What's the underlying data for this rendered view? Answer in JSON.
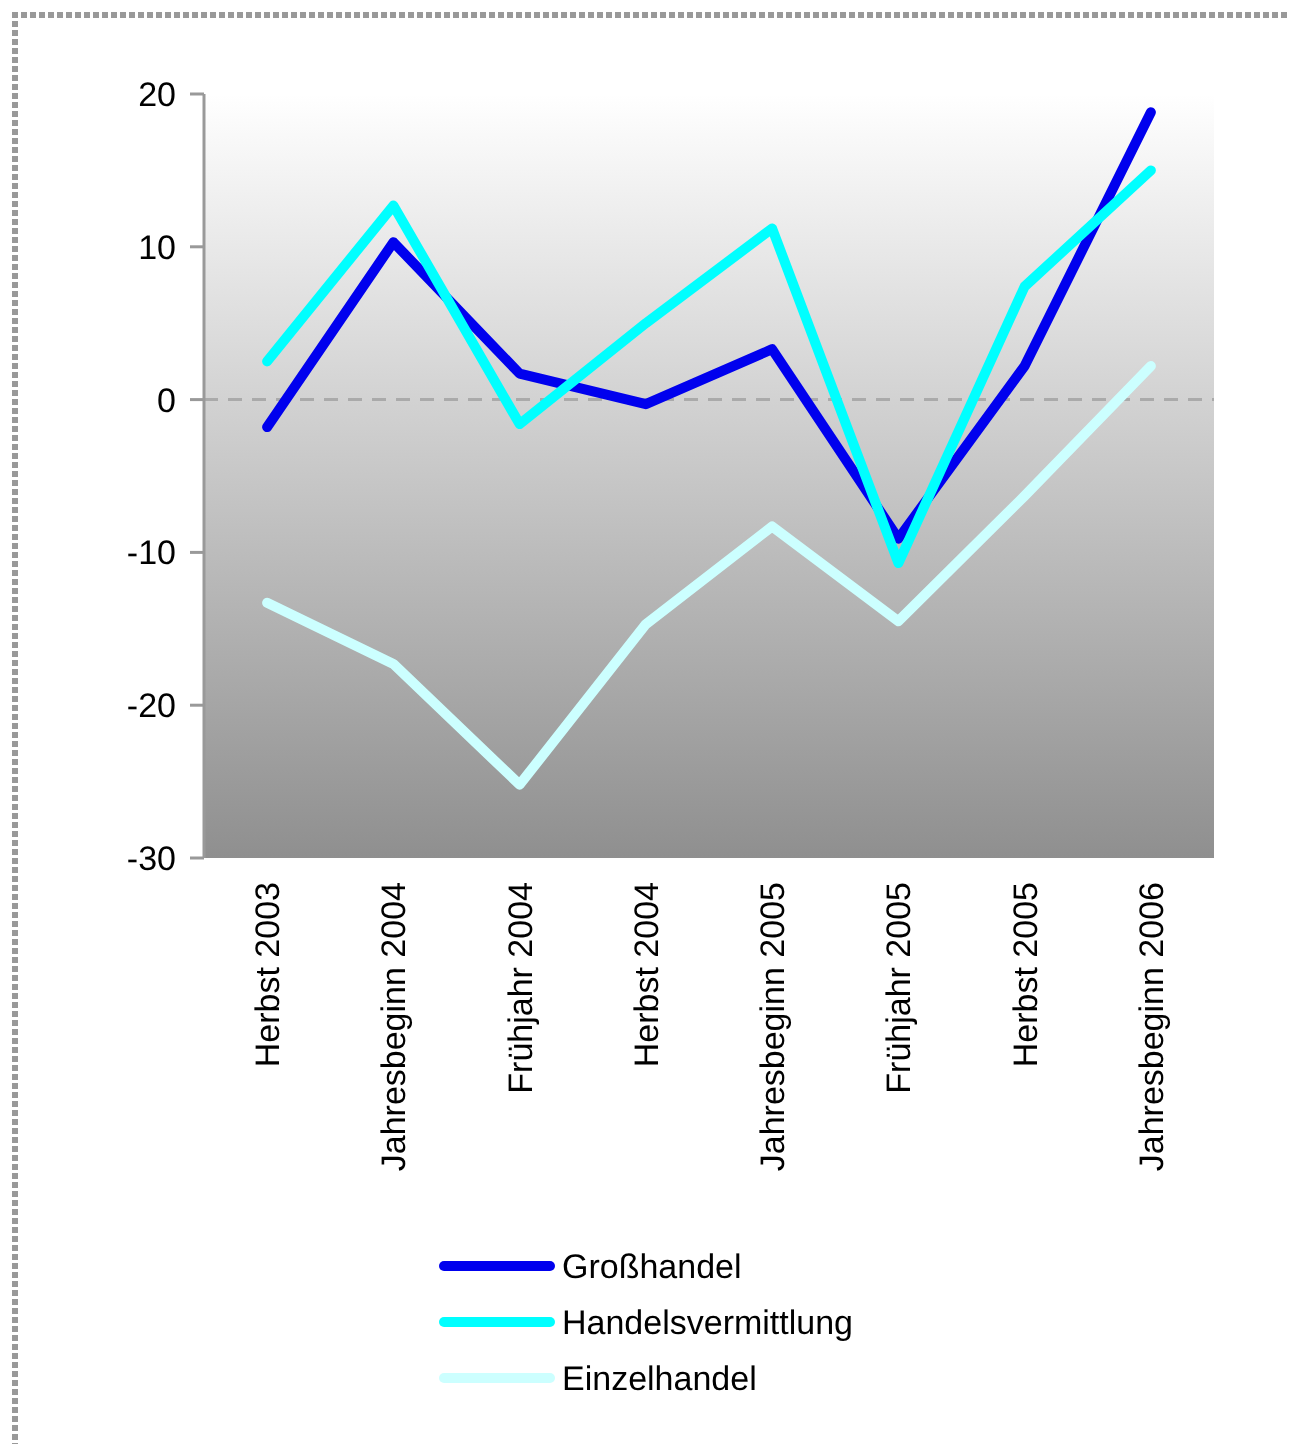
{
  "chart_data": {
    "type": "line",
    "categories": [
      "Herbst 2003",
      "Jahresbeginn 2004",
      "Frühjahr 2004",
      "Herbst 2004",
      "Jahresbeginn 2005",
      "Frühjahr 2005",
      "Herbst 2005",
      "Jahresbeginn 2006"
    ],
    "series": [
      {
        "name": "Großhandel",
        "color": "#0000ee",
        "values": [
          -1.8,
          10.3,
          1.7,
          -0.3,
          3.3,
          -9.1,
          2.2,
          18.8
        ]
      },
      {
        "name": "Handelsvermittlung",
        "color": "#00ffff",
        "values": [
          2.5,
          12.7,
          -1.6,
          5.0,
          11.2,
          -10.7,
          7.4,
          15.0
        ]
      },
      {
        "name": "Einzelhandel",
        "color": "#ccffff",
        "values": [
          -13.3,
          -17.3,
          -25.2,
          -14.7,
          -8.3,
          -14.5,
          -6.3,
          2.2
        ]
      }
    ],
    "ylim": [
      -30,
      20
    ],
    "yticks": [
      -30,
      -20,
      -10,
      0,
      10,
      20
    ],
    "ref_lines": [
      {
        "axis": "y",
        "value": 0,
        "color": "#aaaaaa",
        "line_style": "dashed"
      }
    ],
    "legend": "bottom",
    "grid": false,
    "marker": "none",
    "line_style": "solid"
  }
}
